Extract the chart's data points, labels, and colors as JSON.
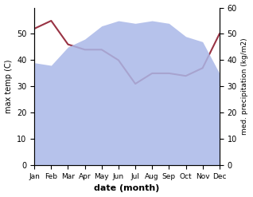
{
  "months": [
    "Jan",
    "Feb",
    "Mar",
    "Apr",
    "May",
    "Jun",
    "Jul",
    "Aug",
    "Sep",
    "Oct",
    "Nov",
    "Dec"
  ],
  "temp_max": [
    52,
    55,
    46,
    44,
    44,
    40,
    31,
    35,
    35,
    34,
    37,
    50
  ],
  "precipitation": [
    39,
    38,
    45,
    48,
    53,
    55,
    54,
    55,
    54,
    49,
    47,
    35
  ],
  "temp_ylim": [
    0,
    60
  ],
  "precip_ylim": [
    0,
    60
  ],
  "temp_color": "#993344",
  "precip_fill_color": "#aab8e8",
  "precip_fill_alpha": 0.85,
  "xlabel": "date (month)",
  "ylabel_left": "max temp (C)",
  "ylabel_right": "med. precipitation (kg/m2)",
  "left_yticks": [
    0,
    10,
    20,
    30,
    40,
    50
  ],
  "right_yticks": [
    0,
    10,
    20,
    30,
    40,
    50,
    60
  ],
  "background_color": "#ffffff"
}
